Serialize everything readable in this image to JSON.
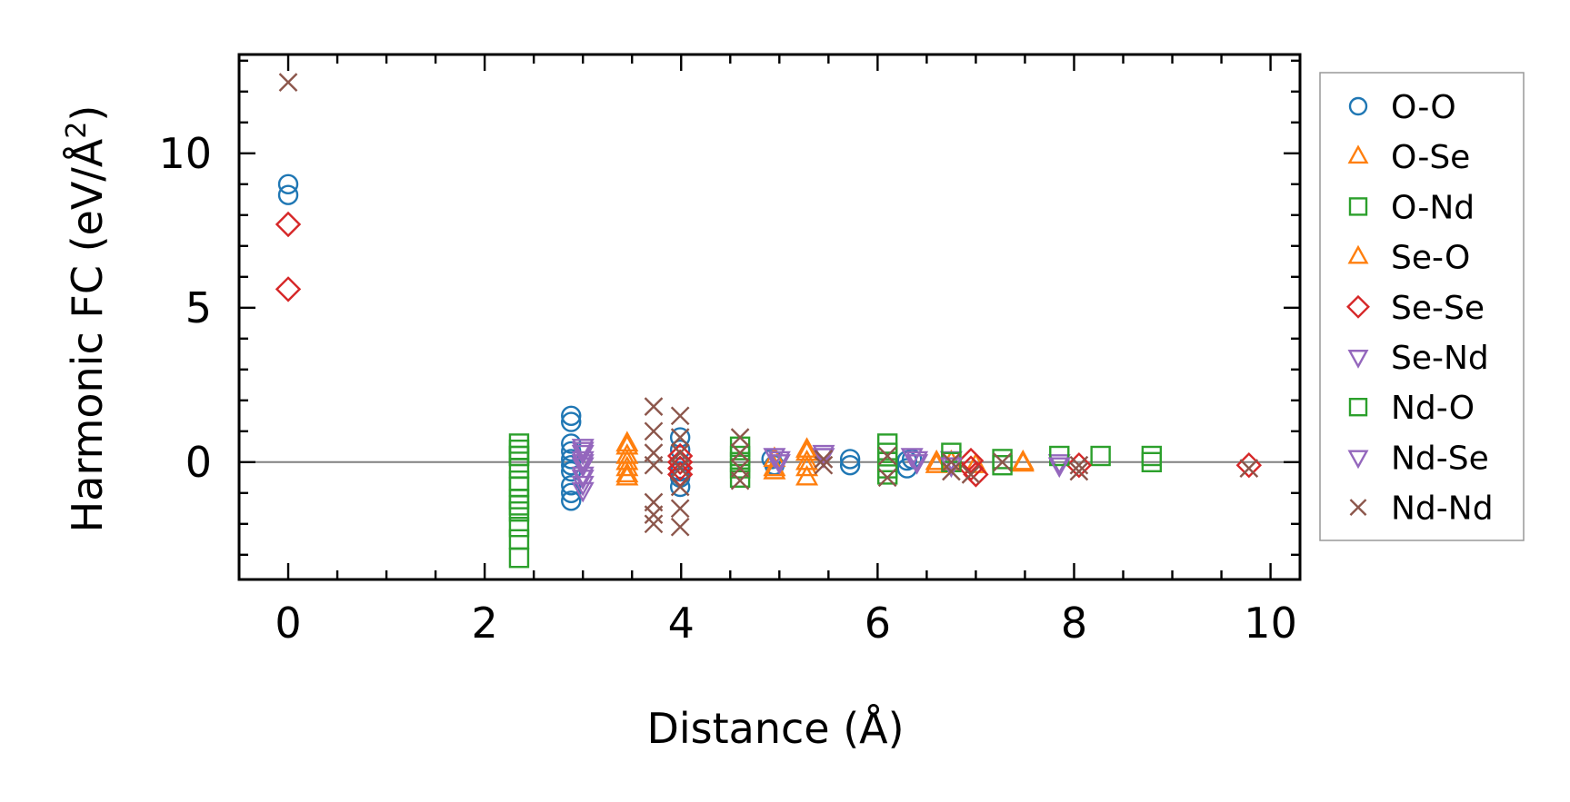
{
  "chart_data": {
    "type": "scatter",
    "xlabel": "Distance (Å)",
    "ylabel": "Harmonic FC (eV/Å",
    "ylabel_sup": "2",
    "ylabel_close": ")",
    "xlim": [
      -0.5,
      10.3
    ],
    "ylim": [
      -3.8,
      13.2
    ],
    "xticks": [
      0,
      2,
      4,
      6,
      8,
      10
    ],
    "xtick_labels": [
      "0",
      "2",
      "4",
      "6",
      "8",
      "10"
    ],
    "yticks": [
      0,
      5,
      10
    ],
    "ytick_labels": [
      "0",
      "5",
      "10"
    ],
    "zero_line": true,
    "grid": false,
    "legend_position": "outside-right",
    "series": [
      {
        "name": "O-O",
        "marker": "circle",
        "color": "#1f77b4",
        "x": [
          0,
          0,
          2.88,
          2.88,
          2.88,
          2.88,
          2.88,
          2.88,
          2.88,
          2.88,
          2.88,
          2.88,
          3.99,
          3.99,
          3.99,
          3.99,
          3.99,
          4.92,
          4.95,
          5.72,
          5.72,
          6.3,
          6.3,
          6.35
        ],
        "y": [
          9.0,
          8.65,
          1.5,
          1.3,
          0.6,
          0.35,
          0.1,
          -0.1,
          -0.3,
          -0.75,
          -1.0,
          -1.25,
          0.8,
          0.4,
          -0.3,
          -0.5,
          -0.8,
          0.1,
          -0.1,
          0.1,
          -0.1,
          0.05,
          -0.2,
          0.1
        ]
      },
      {
        "name": "O-Se",
        "marker": "triangle-up",
        "color": "#ff7f0e",
        "x": [
          3.45,
          3.45,
          3.45,
          3.45,
          4.95,
          4.95,
          5.28,
          5.28,
          5.28,
          6.6,
          7.48
        ],
        "y": [
          0.5,
          0.2,
          -0.2,
          -0.5,
          0.1,
          -0.3,
          0.3,
          0.0,
          -0.5,
          0.0,
          0.0
        ]
      },
      {
        "name": "O-Nd",
        "marker": "square",
        "color": "#2ca02c",
        "x": [
          2.35,
          2.35,
          2.35,
          2.35,
          2.35,
          2.35,
          2.35,
          2.35,
          2.35,
          2.35,
          4.6,
          4.6,
          4.6,
          6.1,
          6.1,
          6.1,
          8.27,
          8.79,
          8.79
        ],
        "y": [
          0.6,
          0.4,
          0.2,
          -0.2,
          -0.6,
          -1.2,
          -1.6,
          -2.1,
          -2.5,
          -3.1,
          0.5,
          0.0,
          -0.5,
          0.6,
          0.0,
          -0.4,
          0.2,
          0.2,
          0.0
        ]
      },
      {
        "name": "Se-O",
        "marker": "triangle-up",
        "color": "#ff7f0e",
        "x": [
          3.45,
          3.45,
          3.45,
          4.95,
          5.28,
          5.28,
          6.6,
          6.75,
          7.0,
          7.48
        ],
        "y": [
          0.6,
          0.0,
          -0.4,
          -0.2,
          0.4,
          -0.2,
          -0.1,
          0.0,
          -0.1,
          -0.05
        ]
      },
      {
        "name": "Se-Se",
        "marker": "diamond",
        "color": "#d62728",
        "x": [
          0,
          0,
          3.99,
          3.99,
          3.99,
          3.99,
          6.95,
          6.95,
          7.0,
          8.05,
          9.78
        ],
        "y": [
          7.7,
          5.6,
          0.2,
          0.0,
          -0.2,
          -0.4,
          0.05,
          -0.2,
          -0.4,
          -0.1,
          -0.1
        ]
      },
      {
        "name": "Se-Nd",
        "marker": "triangle-down",
        "color": "#9467bd",
        "x": [
          3.0,
          3.0,
          3.0,
          3.0,
          3.0,
          3.0,
          3.0,
          4.95,
          5.0,
          5.45,
          6.35,
          6.4,
          6.75,
          7.85
        ],
        "y": [
          0.5,
          0.3,
          0.1,
          -0.1,
          -0.4,
          -0.7,
          -0.9,
          0.2,
          0.0,
          0.3,
          0.2,
          0.0,
          0.1,
          0.0
        ]
      },
      {
        "name": "Nd-O",
        "marker": "square",
        "color": "#2ca02c",
        "x": [
          2.35,
          2.35,
          2.35,
          4.6,
          4.6,
          6.1,
          6.1,
          6.75,
          6.75,
          7.27,
          7.27,
          7.85
        ],
        "y": [
          0.2,
          -0.8,
          -1.4,
          0.2,
          -0.2,
          0.3,
          -0.2,
          0.3,
          0.0,
          0.1,
          -0.1,
          0.2
        ]
      },
      {
        "name": "Nd-Se",
        "marker": "triangle-down",
        "color": "#9467bd",
        "x": [
          3.0,
          3.0,
          3.0,
          5.0,
          5.45,
          6.4,
          6.75,
          7.85
        ],
        "y": [
          0.4,
          0.0,
          -0.5,
          0.1,
          0.2,
          0.1,
          -0.1,
          -0.1
        ]
      },
      {
        "name": "Nd-Nd",
        "marker": "x",
        "color": "#8c564b",
        "x": [
          0,
          3.72,
          3.72,
          3.72,
          3.72,
          3.72,
          3.72,
          3.72,
          3.99,
          3.99,
          3.99,
          3.99,
          3.99,
          3.99,
          3.99,
          4.6,
          4.6,
          4.6,
          4.6,
          5.45,
          5.45,
          6.1,
          6.1,
          6.75,
          6.75,
          6.95,
          7.27,
          8.05,
          8.05,
          9.78
        ],
        "y": [
          12.3,
          1.8,
          1.0,
          0.3,
          -0.1,
          -1.3,
          -1.7,
          -2.0,
          1.5,
          0.8,
          0.3,
          -0.2,
          -0.8,
          -1.5,
          -2.1,
          0.8,
          0.3,
          -0.2,
          -0.6,
          0.1,
          -0.1,
          0.2,
          -0.5,
          0.0,
          -0.3,
          -0.4,
          0.0,
          -0.1,
          -0.3,
          -0.2
        ]
      }
    ]
  }
}
